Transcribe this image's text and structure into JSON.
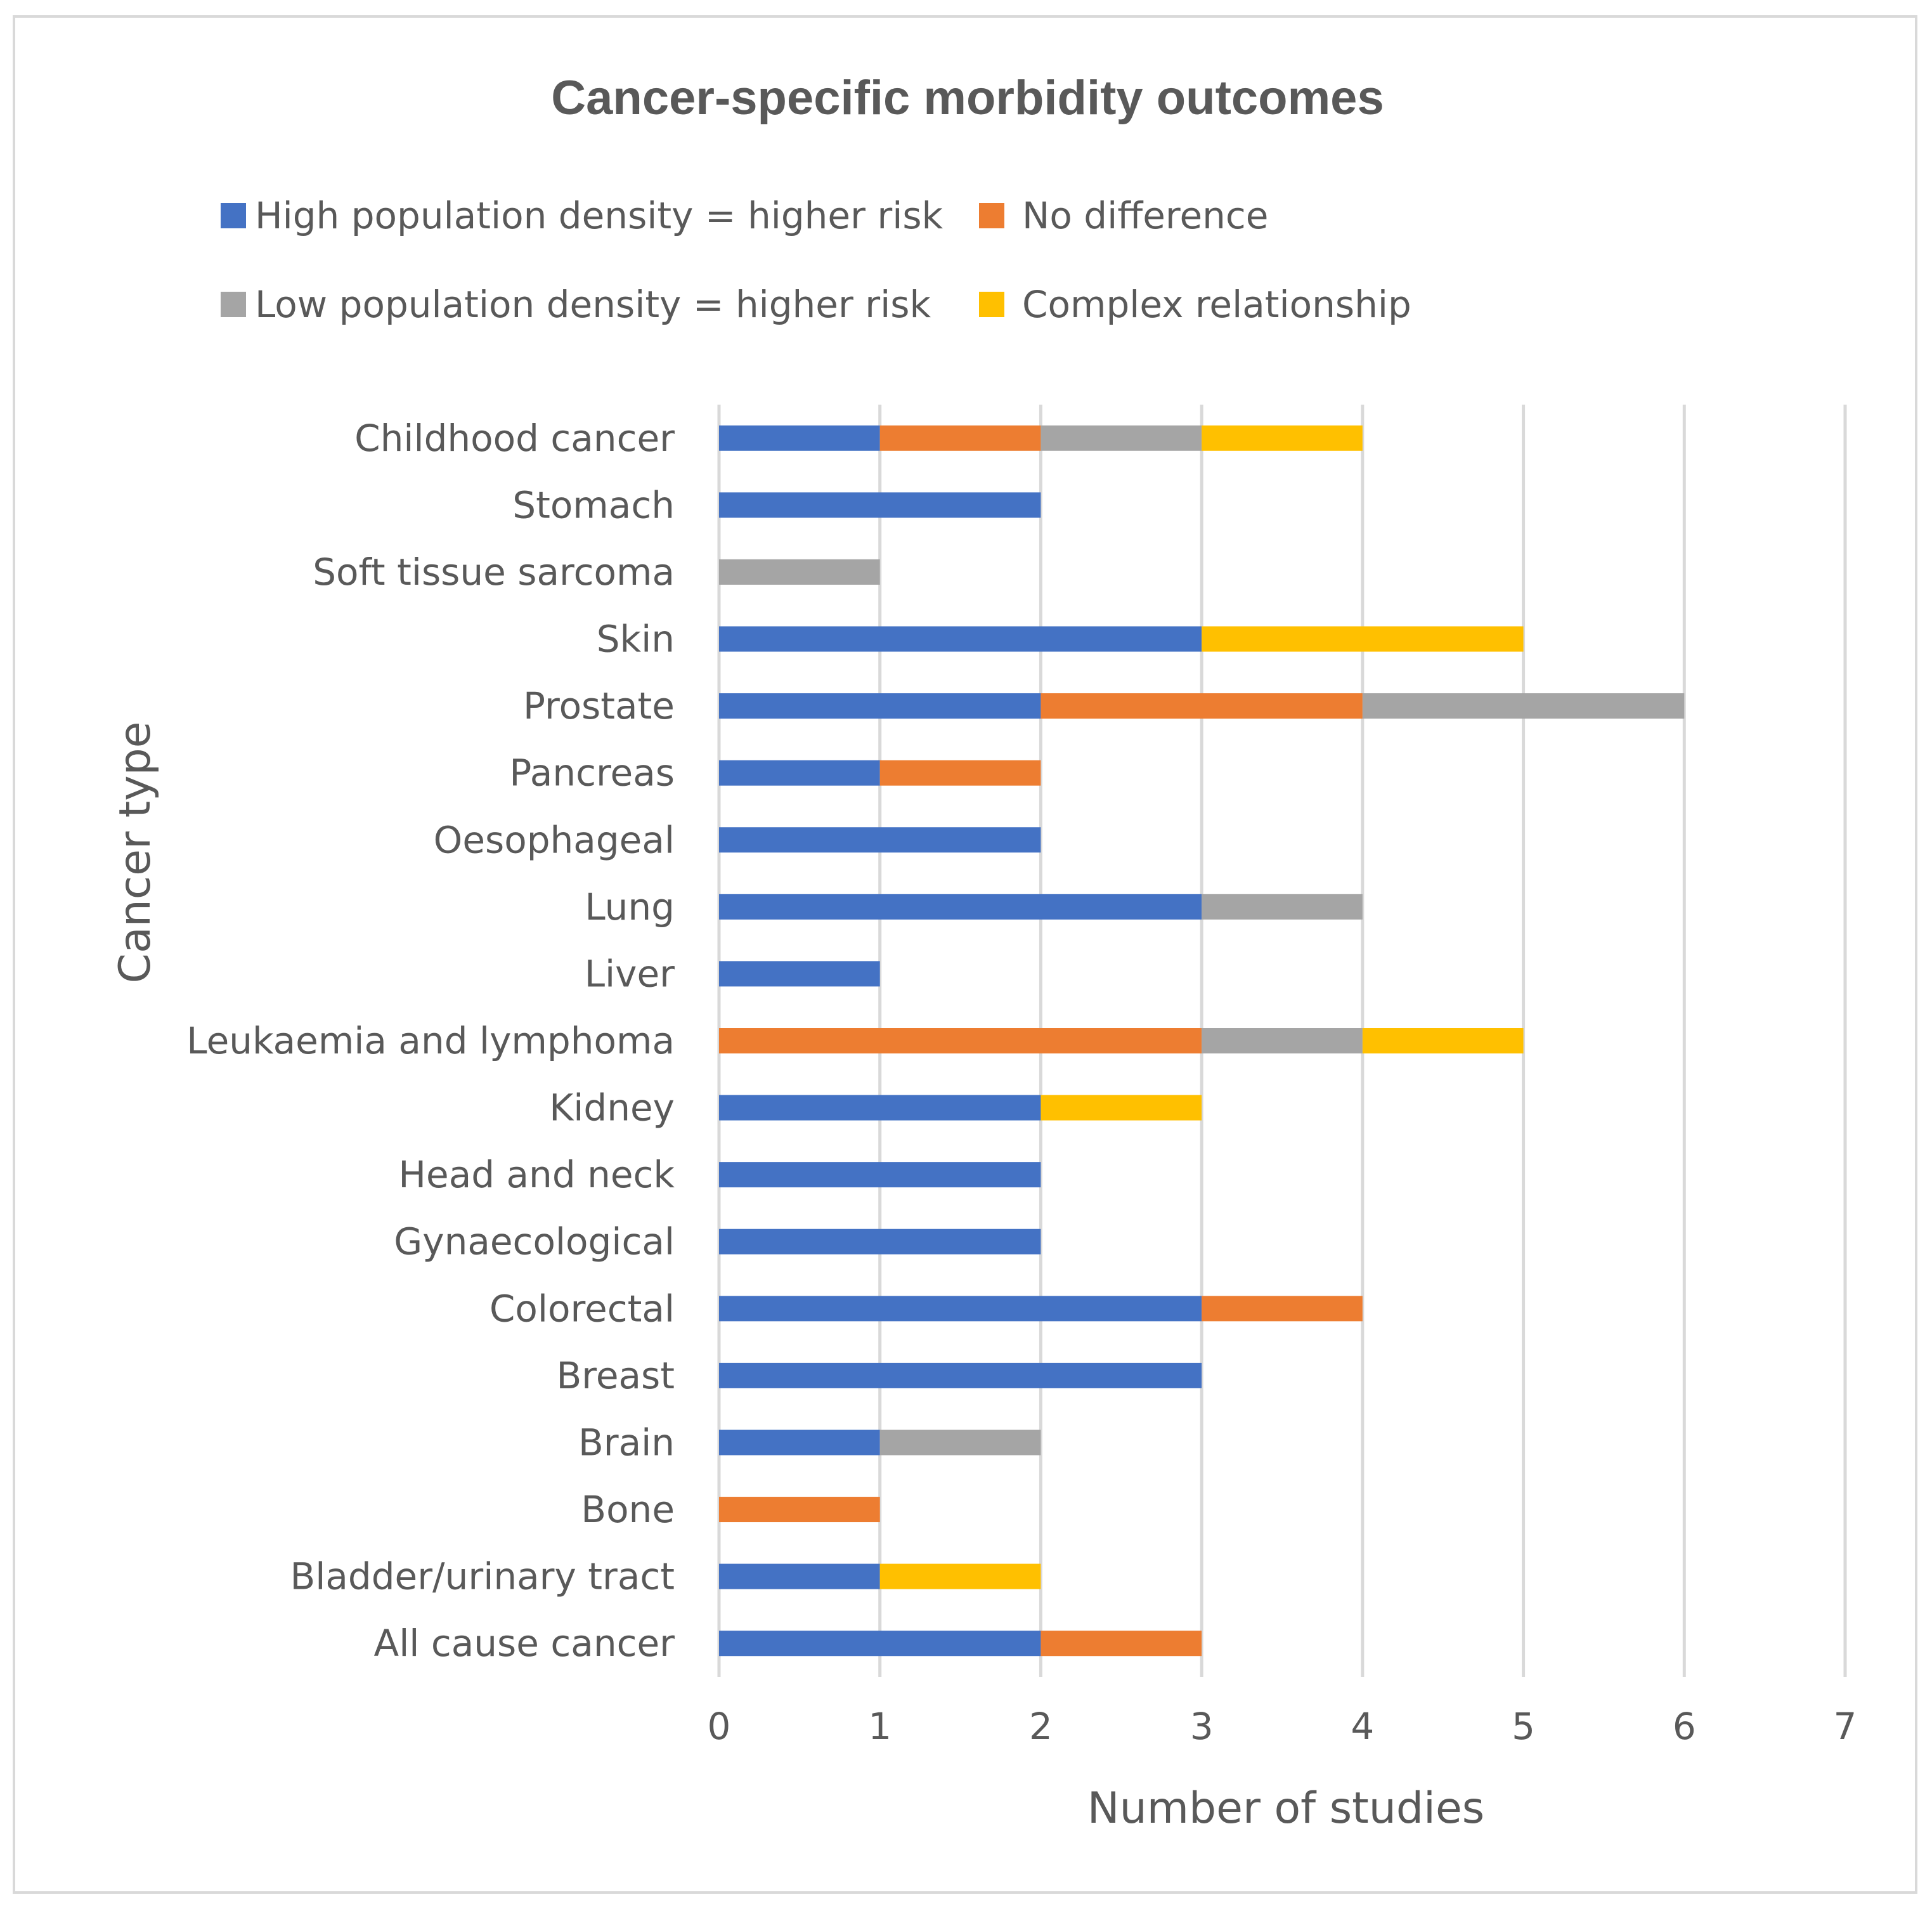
{
  "chart_data": {
    "type": "bar",
    "orientation": "horizontal",
    "stacked": true,
    "title": "Cancer-specific morbidity outcomes",
    "xlabel": "Number of studies",
    "ylabel": "Cancer type",
    "xlim": [
      0,
      7
    ],
    "xticks": [
      0,
      1,
      2,
      3,
      4,
      5,
      6,
      7
    ],
    "grid": "vertical",
    "legend_position": "top",
    "categories": [
      "All cause cancer",
      "Bladder/urinary tract",
      "Bone",
      "Brain",
      "Breast",
      "Colorectal",
      "Gynaecological",
      "Head and neck",
      "Kidney",
      "Leukaemia and lymphoma",
      "Liver",
      "Lung",
      "Oesophageal",
      "Pancreas",
      "Prostate",
      "Skin",
      "Soft tissue sarcoma",
      "Stomach",
      "Childhood cancer"
    ],
    "series": [
      {
        "name": "High population density = higher risk",
        "color": "#4472c4",
        "values": [
          2,
          1,
          0,
          1,
          3,
          3,
          2,
          2,
          2,
          0,
          1,
          3,
          2,
          1,
          2,
          3,
          0,
          2,
          1
        ]
      },
      {
        "name": "No difference",
        "color": "#ed7d31",
        "values": [
          1,
          0,
          1,
          0,
          0,
          1,
          0,
          0,
          0,
          3,
          0,
          0,
          0,
          1,
          2,
          0,
          0,
          0,
          1
        ]
      },
      {
        "name": "Low population density = higher risk",
        "color": "#a5a5a5",
        "values": [
          0,
          0,
          0,
          1,
          0,
          0,
          0,
          0,
          0,
          1,
          0,
          1,
          0,
          0,
          2,
          0,
          1,
          0,
          1
        ]
      },
      {
        "name": "Complex relationship",
        "color": "#ffc000",
        "values": [
          0,
          1,
          0,
          0,
          0,
          0,
          0,
          0,
          1,
          1,
          0,
          0,
          0,
          0,
          0,
          2,
          0,
          0,
          1
        ]
      }
    ]
  }
}
